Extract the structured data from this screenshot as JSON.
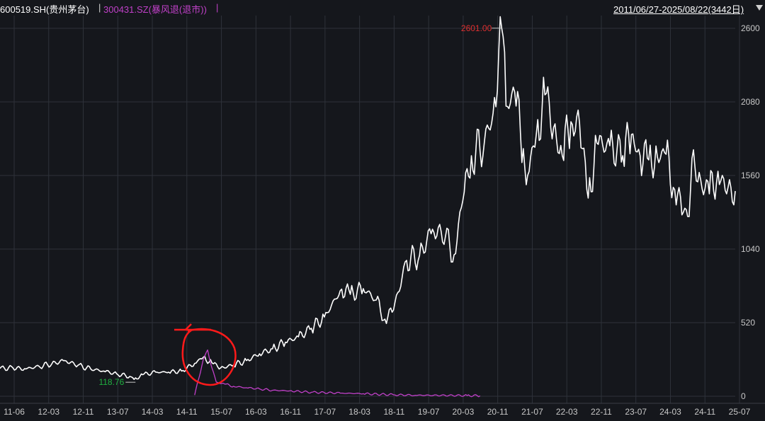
{
  "header": {
    "series1_label": "600519.SH(贵州茅台)",
    "separator1": "|",
    "series2_label": "300431.SZ(暴风退(退市))",
    "separator2": "|",
    "date_range": "2011/06/27-2025/08/22(3442日)",
    "menu_icon": "triangle-down-icon"
  },
  "colors": {
    "background": "#15171c",
    "series1": "#ffffff",
    "series2": "#c040c8",
    "grid": "#2e323a",
    "max_label": "#e03030",
    "min_label": "#20b040",
    "annotation": "#ff1a1a",
    "header_divider": "#d0d0d0"
  },
  "chart_data": {
    "type": "line",
    "x_ticks": [
      "11-06",
      "12-03",
      "12-11",
      "13-07",
      "14-03",
      "14-11",
      "15-07",
      "16-03",
      "16-11",
      "17-07",
      "18-03",
      "18-11",
      "19-07",
      "20-03",
      "20-11",
      "21-07",
      "22-03",
      "22-11",
      "23-07",
      "24-03",
      "24-11",
      "25-07"
    ],
    "y_ticks": [
      0,
      520,
      1040,
      1560,
      2080,
      2600
    ],
    "ylim": [
      0,
      2600
    ],
    "grid": true,
    "max_label": "2601.00",
    "min_label": "118.76",
    "series": [
      {
        "name": "600519.SH(贵州茅台)",
        "color": "#ffffff",
        "points": [
          [
            "2011-06",
            196
          ],
          [
            "2011-09",
            200
          ],
          [
            "2011-12",
            193
          ],
          [
            "2012-03",
            212
          ],
          [
            "2012-06",
            230
          ],
          [
            "2012-09",
            252
          ],
          [
            "2012-12",
            218
          ],
          [
            "2013-03",
            192
          ],
          [
            "2013-06",
            178
          ],
          [
            "2013-09",
            158
          ],
          [
            "2013-12",
            140
          ],
          [
            "2014-01",
            119
          ],
          [
            "2014-03",
            152
          ],
          [
            "2014-06",
            170
          ],
          [
            "2014-09",
            170
          ],
          [
            "2014-12",
            178
          ],
          [
            "2015-03",
            232
          ],
          [
            "2015-05",
            275
          ],
          [
            "2015-07",
            236
          ],
          [
            "2015-09",
            200
          ],
          [
            "2015-12",
            220
          ],
          [
            "2016-03",
            252
          ],
          [
            "2016-06",
            300
          ],
          [
            "2016-09",
            335
          ],
          [
            "2016-12",
            382
          ],
          [
            "2017-03",
            420
          ],
          [
            "2017-06",
            480
          ],
          [
            "2017-09",
            560
          ],
          [
            "2018-01",
            757
          ],
          [
            "2018-03",
            720
          ],
          [
            "2018-06",
            760
          ],
          [
            "2018-09",
            680
          ],
          [
            "2018-11",
            545
          ],
          [
            "2019-01",
            610
          ],
          [
            "2019-04",
            960
          ],
          [
            "2019-07",
            995
          ],
          [
            "2019-10",
            1180
          ],
          [
            "2020-01",
            1130
          ],
          [
            "2020-03",
            1000
          ],
          [
            "2020-05",
            1380
          ],
          [
            "2020-07",
            1700
          ],
          [
            "2020-10",
            1800
          ],
          [
            "2020-12",
            2000
          ],
          [
            "2021-02",
            2601
          ],
          [
            "2021-03",
            2050
          ],
          [
            "2021-05",
            2150
          ],
          [
            "2021-07",
            1750
          ],
          [
            "2021-08",
            1560
          ],
          [
            "2021-10",
            1850
          ],
          [
            "2021-12",
            2130
          ],
          [
            "2022-02",
            1900
          ],
          [
            "2022-04",
            1700
          ],
          [
            "2022-06",
            1940
          ],
          [
            "2022-08",
            1930
          ],
          [
            "2022-10",
            1400
          ],
          [
            "2022-12",
            1790
          ],
          [
            "2023-03",
            1770
          ],
          [
            "2023-06",
            1700
          ],
          [
            "2023-08",
            1850
          ],
          [
            "2023-10",
            1700
          ],
          [
            "2023-12",
            1670
          ],
          [
            "2024-02",
            1690
          ],
          [
            "2024-04",
            1710
          ],
          [
            "2024-06",
            1460
          ],
          [
            "2024-08",
            1300
          ],
          [
            "2024-09",
            1270
          ],
          [
            "2024-10",
            1680
          ],
          [
            "2024-12",
            1530
          ],
          [
            "2025-02",
            1430
          ],
          [
            "2025-04",
            1590
          ],
          [
            "2025-06",
            1430
          ],
          [
            "2025-08",
            1450
          ]
        ]
      },
      {
        "name": "300431.SZ(暴风退(退市))",
        "color": "#c040c8",
        "points": [
          [
            "2015-03",
            8
          ],
          [
            "2015-04",
            130
          ],
          [
            "2015-05",
            260
          ],
          [
            "2015-06",
            327
          ],
          [
            "2015-07",
            200
          ],
          [
            "2015-08",
            100
          ],
          [
            "2015-10",
            85
          ],
          [
            "2015-12",
            70
          ],
          [
            "2016-03",
            60
          ],
          [
            "2016-06",
            52
          ],
          [
            "2016-09",
            42
          ],
          [
            "2017-01",
            38
          ],
          [
            "2017-06",
            28
          ],
          [
            "2018-01",
            22
          ],
          [
            "2018-06",
            18
          ],
          [
            "2019-01",
            10
          ],
          [
            "2019-06",
            7
          ],
          [
            "2020-06",
            5
          ],
          [
            "2020-09",
            3
          ]
        ]
      }
    ]
  }
}
